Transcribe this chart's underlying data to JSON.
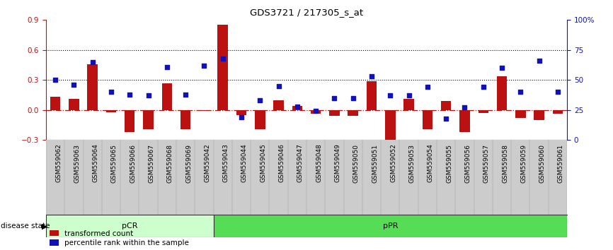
{
  "title": "GDS3721 / 217305_s_at",
  "samples": [
    "GSM559062",
    "GSM559063",
    "GSM559064",
    "GSM559065",
    "GSM559066",
    "GSM559067",
    "GSM559068",
    "GSM559069",
    "GSM559042",
    "GSM559043",
    "GSM559044",
    "GSM559045",
    "GSM559046",
    "GSM559047",
    "GSM559048",
    "GSM559049",
    "GSM559050",
    "GSM559051",
    "GSM559052",
    "GSM559053",
    "GSM559054",
    "GSM559055",
    "GSM559056",
    "GSM559057",
    "GSM559058",
    "GSM559059",
    "GSM559060",
    "GSM559061"
  ],
  "transformed_count": [
    0.13,
    0.11,
    0.46,
    -0.02,
    -0.22,
    -0.19,
    0.27,
    -0.19,
    -0.01,
    0.85,
    -0.05,
    -0.19,
    0.1,
    0.04,
    -0.04,
    -0.06,
    -0.06,
    0.29,
    -0.3,
    0.11,
    -0.19,
    0.09,
    -0.22,
    -0.03,
    0.34,
    -0.08,
    -0.1,
    -0.04
  ],
  "percentile_rank": [
    50,
    46,
    65,
    40,
    38,
    37,
    61,
    38,
    62,
    68,
    19,
    33,
    45,
    28,
    24,
    35,
    35,
    53,
    37,
    37,
    44,
    18,
    27,
    44,
    60,
    40,
    66,
    40
  ],
  "pcr_count": 9,
  "ppr_count": 19,
  "ylim_left": [
    -0.3,
    0.9
  ],
  "ylim_right": [
    0,
    100
  ],
  "bar_color": "#BB1111",
  "dot_color": "#1111BB",
  "pcr_color": "#CCFFCC",
  "ppr_color": "#55DD55",
  "zero_line_color": "#BB1111",
  "xtick_bg_color": "#CCCCCC",
  "disease_state_border_color": "#333333",
  "hline_color": "#000000",
  "left_axis_color": "#BB1111",
  "right_axis_color": "#1111BB"
}
